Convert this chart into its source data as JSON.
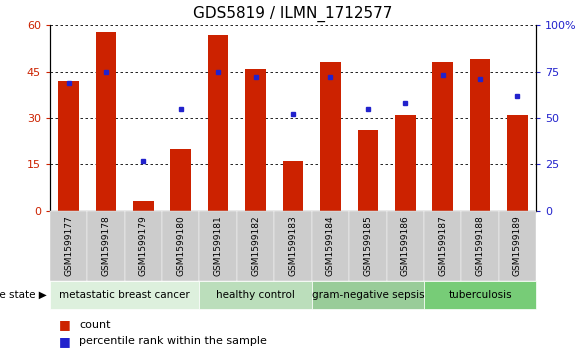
{
  "title": "GDS5819 / ILMN_1712577",
  "samples": [
    "GSM1599177",
    "GSM1599178",
    "GSM1599179",
    "GSM1599180",
    "GSM1599181",
    "GSM1599182",
    "GSM1599183",
    "GSM1599184",
    "GSM1599185",
    "GSM1599186",
    "GSM1599187",
    "GSM1599188",
    "GSM1599189"
  ],
  "counts": [
    42,
    58,
    3,
    20,
    57,
    46,
    16,
    48,
    26,
    31,
    48,
    49,
    31
  ],
  "percentiles": [
    69,
    75,
    27,
    55,
    75,
    72,
    52,
    72,
    55,
    58,
    73,
    71,
    62
  ],
  "bar_color": "#cc2200",
  "dot_color": "#2222cc",
  "ylim_left": [
    0,
    60
  ],
  "ylim_right": [
    0,
    100
  ],
  "yticks_left": [
    0,
    15,
    30,
    45,
    60
  ],
  "yticks_right": [
    0,
    25,
    50,
    75,
    100
  ],
  "ytick_labels_left": [
    "0",
    "15",
    "30",
    "45",
    "60"
  ],
  "ytick_labels_right": [
    "0",
    "25",
    "50",
    "75",
    "100%"
  ],
  "groups": [
    {
      "label": "metastatic breast cancer",
      "indices": [
        0,
        1,
        2,
        3
      ],
      "color": "#ddf0dd"
    },
    {
      "label": "healthy control",
      "indices": [
        4,
        5,
        6
      ],
      "color": "#bbdebb"
    },
    {
      "label": "gram-negative sepsis",
      "indices": [
        7,
        8,
        9
      ],
      "color": "#99cc99"
    },
    {
      "label": "tuberculosis",
      "indices": [
        10,
        11,
        12
      ],
      "color": "#77cc77"
    }
  ],
  "disease_state_label": "disease state",
  "legend_count_label": "count",
  "legend_pct_label": "percentile rank within the sample",
  "tick_bg_color": "#cccccc",
  "title_fontsize": 11,
  "tick_fontsize": 6.5,
  "group_fontsize": 7.5
}
